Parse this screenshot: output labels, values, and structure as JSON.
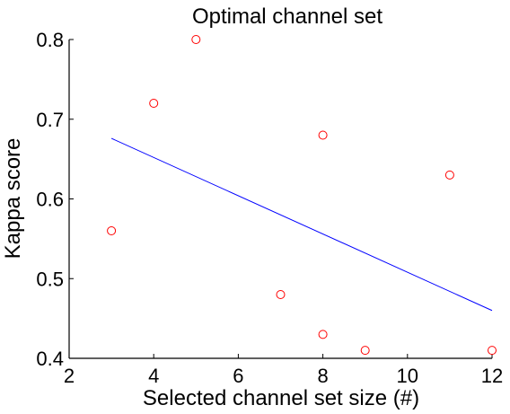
{
  "chart_data": {
    "type": "scatter",
    "title": "Optimal channel set",
    "xlabel": "Selected channel set size (#)",
    "ylabel": "Kappa score",
    "xlim": [
      2,
      12
    ],
    "ylim": [
      0.4,
      0.8
    ],
    "xticks": [
      2,
      4,
      6,
      8,
      10,
      12
    ],
    "yticks": [
      0.4,
      0.5,
      0.6,
      0.7,
      0.8
    ],
    "xtick_labels": [
      "2",
      "4",
      "6",
      "8",
      "10",
      "12"
    ],
    "ytick_labels": [
      "0.4",
      "0.5",
      "0.6",
      "0.7",
      "0.8"
    ],
    "grid": false,
    "series": [
      {
        "type": "scatter",
        "color": "#ff0000",
        "marker": "circle-open",
        "x": [
          3,
          4,
          5,
          7,
          8,
          8,
          9,
          11,
          12
        ],
        "y": [
          0.56,
          0.72,
          0.8,
          0.48,
          0.68,
          0.43,
          0.41,
          0.63,
          0.41
        ]
      },
      {
        "type": "line",
        "color": "#0000ff",
        "x": [
          3,
          12
        ],
        "y": [
          0.676,
          0.46
        ]
      }
    ]
  }
}
